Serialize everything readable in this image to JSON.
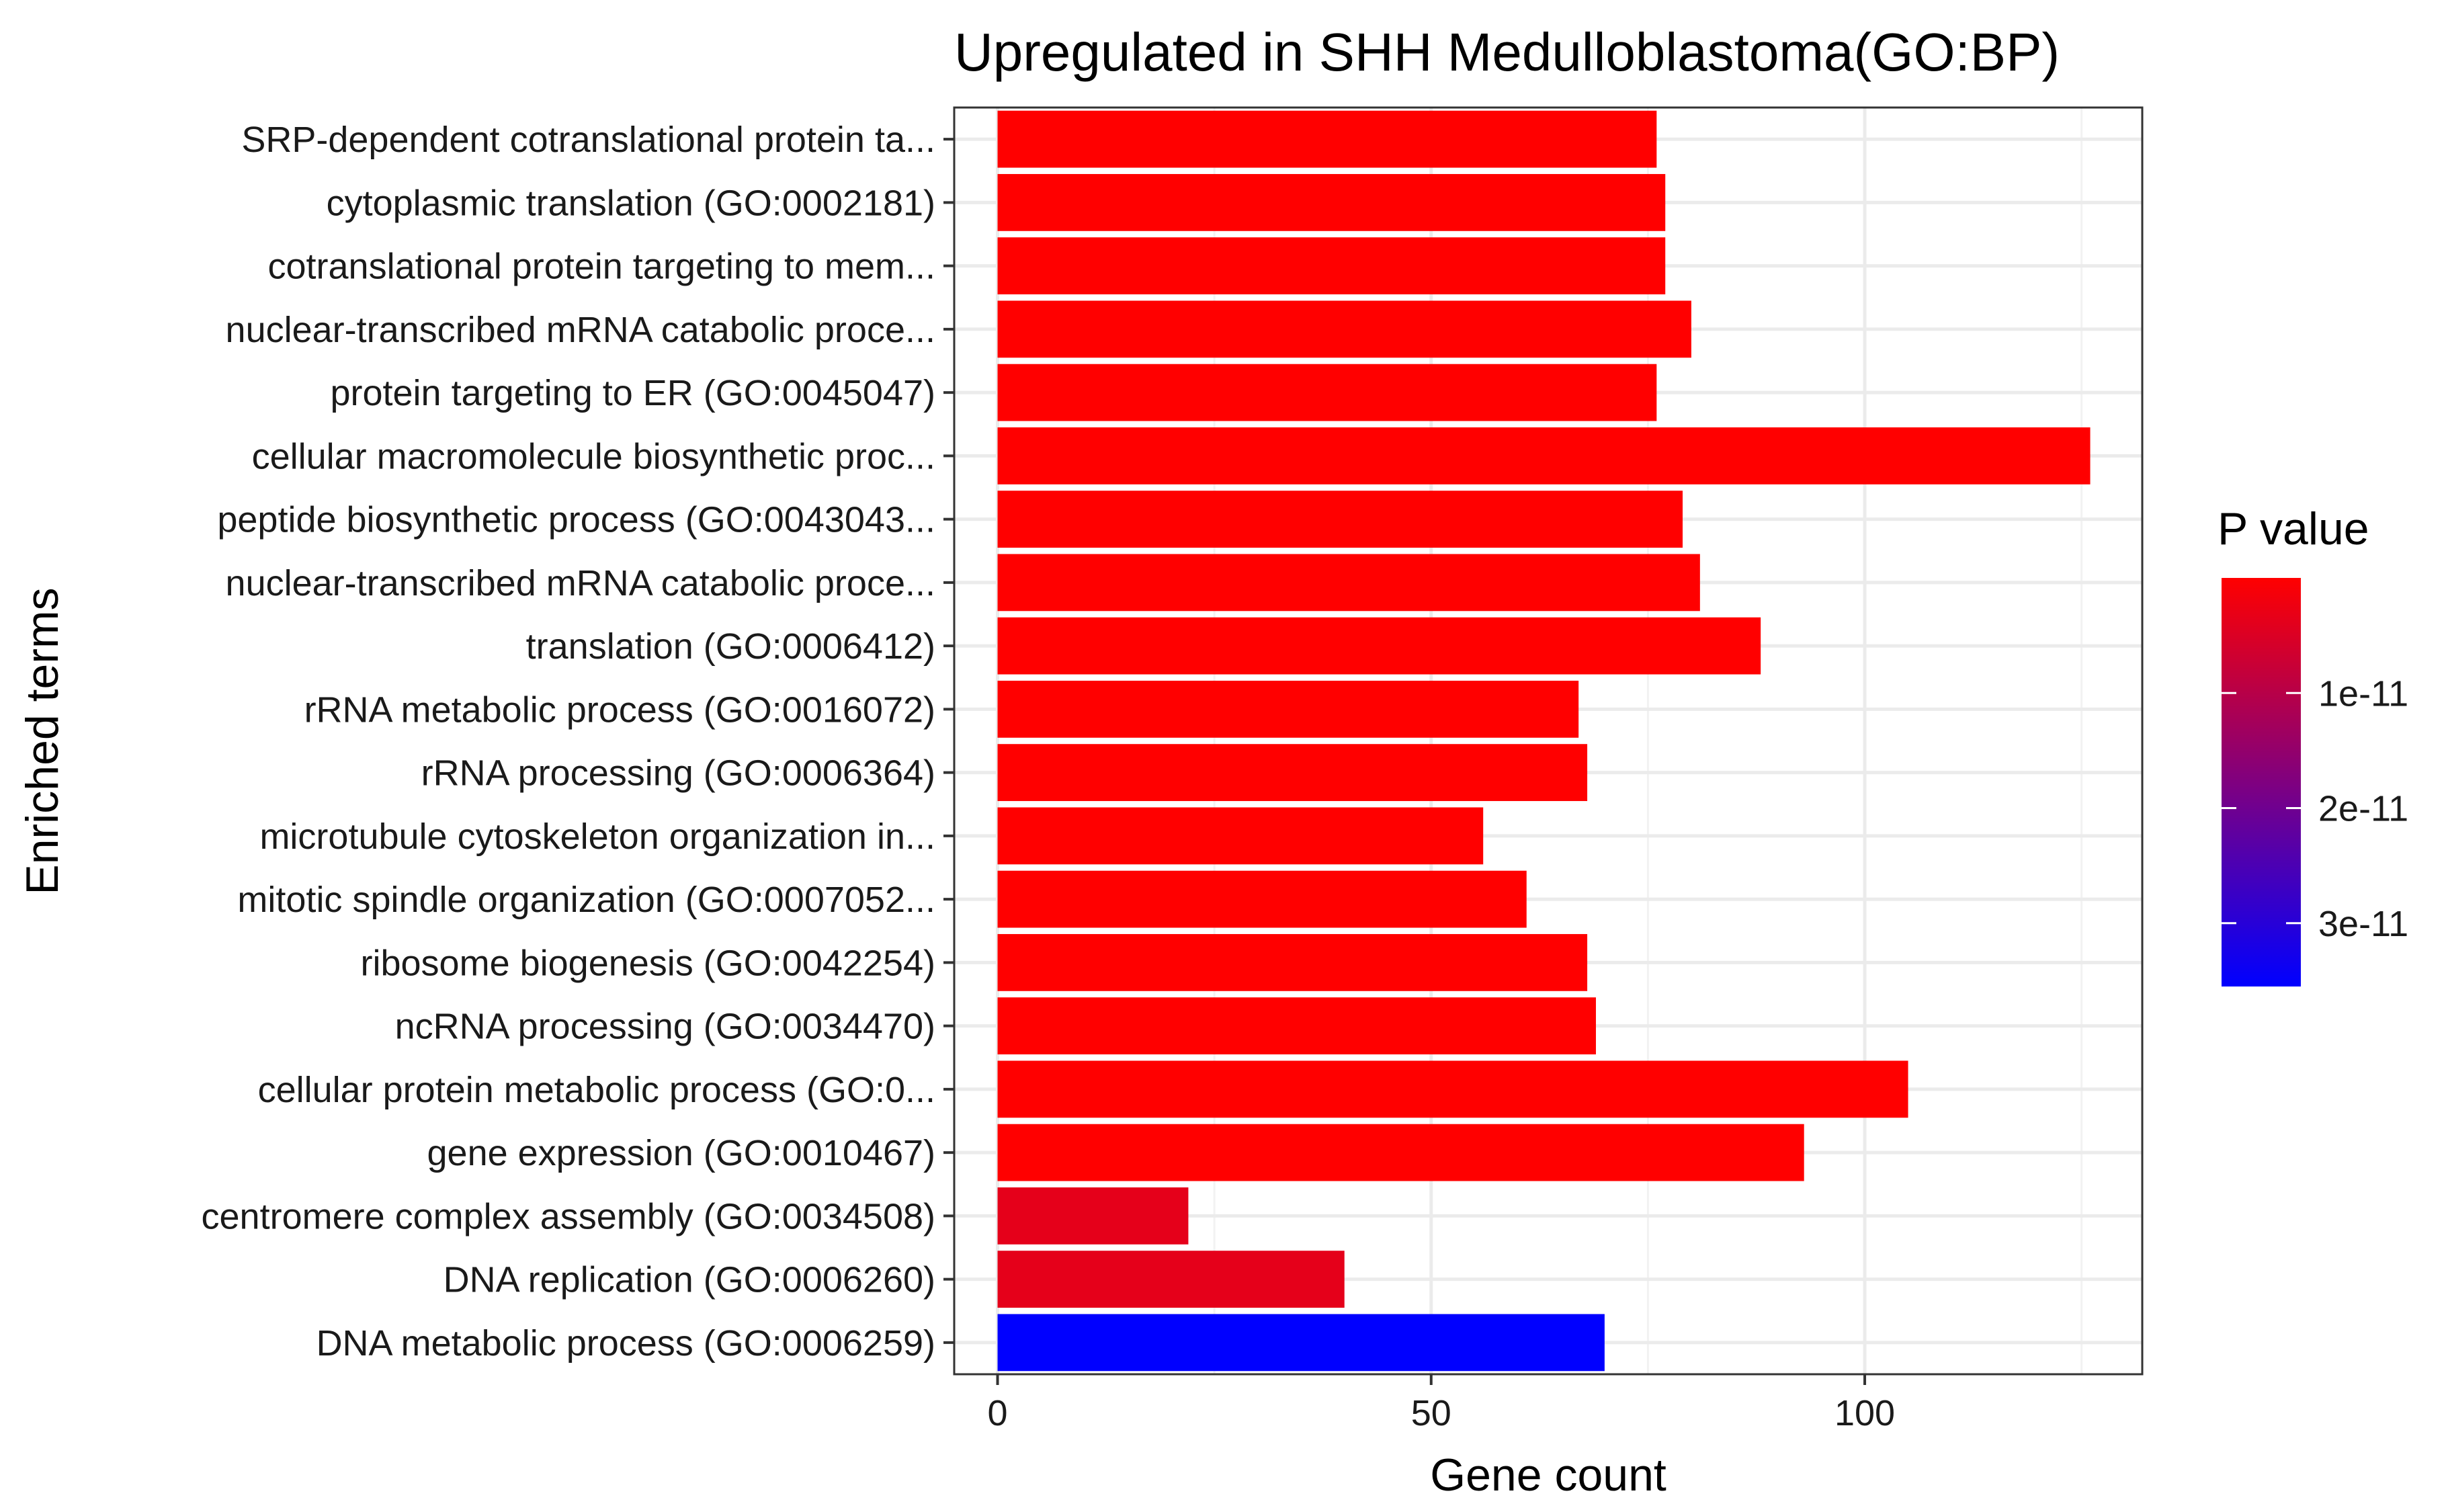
{
  "chart_data": {
    "type": "bar",
    "orientation": "horizontal",
    "title": "Upregulated in SHH Medulloblastoma(GO:BP)",
    "xlabel": "Gene count",
    "ylabel": "Enriched terms",
    "xlim": [
      -5,
      132
    ],
    "x_ticks": [
      0,
      50,
      100
    ],
    "x_tick_labels": [
      "0",
      "50",
      "100"
    ],
    "grid": true,
    "categories": [
      "SRP-dependent cotranslational protein ta...",
      "cytoplasmic translation (GO:0002181)",
      "cotranslational protein targeting to mem...",
      "nuclear-transcribed mRNA catabolic proce...",
      "protein targeting to ER (GO:0045047)",
      "cellular macromolecule biosynthetic proc...",
      "peptide biosynthetic process (GO:0043043...",
      "nuclear-transcribed mRNA catabolic proce...",
      "translation (GO:0006412)",
      "rRNA metabolic process (GO:0016072)",
      "rRNA processing (GO:0006364)",
      "microtubule cytoskeleton organization in...",
      "mitotic spindle organization (GO:0007052...",
      "ribosome biogenesis (GO:0042254)",
      "ncRNA processing (GO:0034470)",
      "cellular protein metabolic process (GO:0...",
      "gene expression (GO:0010467)",
      "centromere complex assembly (GO:0034508)",
      "DNA replication (GO:0006260)",
      "DNA metabolic process (GO:0006259)"
    ],
    "values": [
      76,
      77,
      77,
      80,
      76,
      126,
      79,
      81,
      88,
      67,
      68,
      56,
      61,
      68,
      69,
      105,
      93,
      22,
      40,
      70
    ],
    "p_values": [
      1e-15,
      1e-15,
      1e-15,
      1e-15,
      1e-15,
      1e-15,
      1e-15,
      1e-15,
      1e-15,
      1e-15,
      1e-15,
      1e-15,
      1e-15,
      1e-15,
      1e-15,
      1e-15,
      1e-15,
      3.6e-12,
      3.6e-12,
      3.55e-11
    ],
    "legend": {
      "title": "P value",
      "placement": "right",
      "low_color": "#ff0000",
      "high_color": "#0000ff",
      "range": [
        0,
        3.55e-11
      ],
      "breaks": [
        1e-11,
        2e-11,
        3e-11
      ],
      "break_labels": [
        "1e-11",
        "2e-11",
        "3e-11"
      ]
    }
  }
}
